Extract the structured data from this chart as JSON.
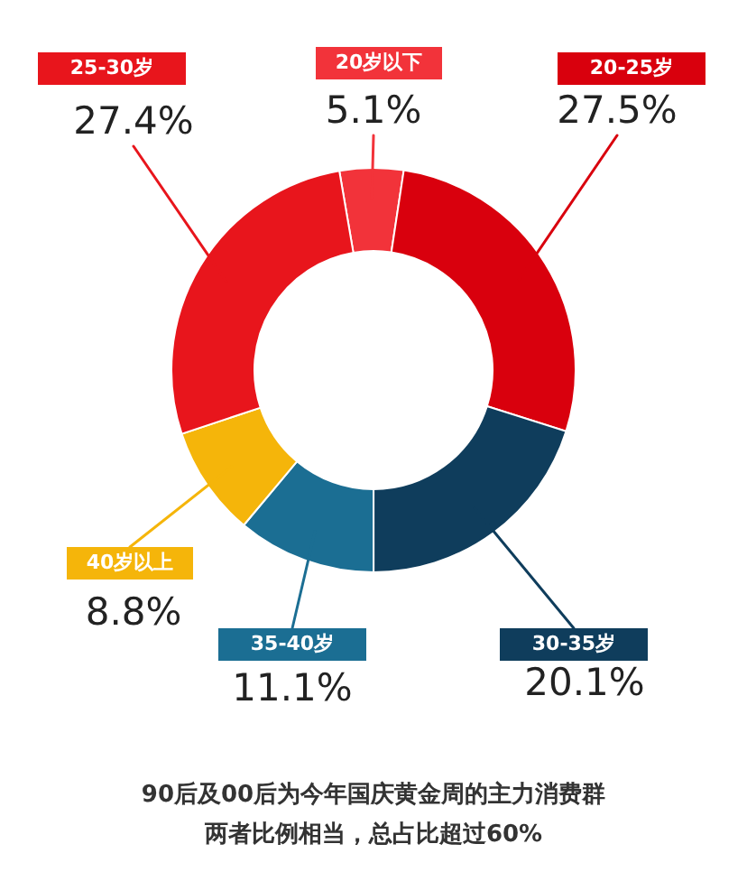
{
  "chart_data": {
    "type": "donut",
    "categories": [
      "20岁以下",
      "20-25岁",
      "30-35岁",
      "35-40岁",
      "40岁以上",
      "25-30岁"
    ],
    "values": [
      5.1,
      27.5,
      20.1,
      11.1,
      8.8,
      27.4
    ],
    "colors": [
      "#f2333a",
      "#d9000d",
      "#0f3d5c",
      "#1b6e93",
      "#f5b50a",
      "#e8151c"
    ],
    "value_labels": [
      "5.1%",
      "27.5%",
      "20.1%",
      "11.1%",
      "8.8%",
      "27.4%"
    ],
    "annotations": [
      "90后及00后为今年国庆黄金周的主力消费群",
      "两者比例相当，总占比超过60%"
    ]
  }
}
